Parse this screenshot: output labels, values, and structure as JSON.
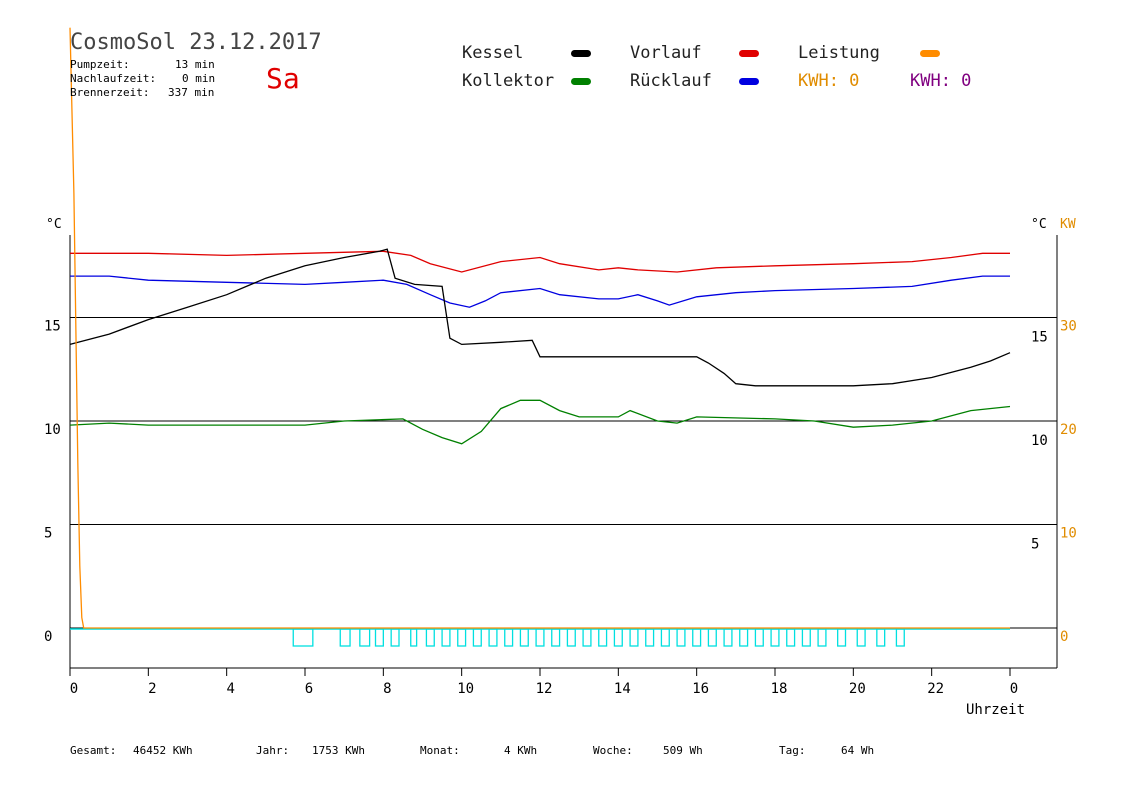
{
  "header": {
    "title": "CosmoSol 23.12.2017",
    "day": "Sa",
    "stats": [
      {
        "label": "Pumpzeit:",
        "value": "13 min"
      },
      {
        "label": "Nachlaufzeit:",
        "value": "0 min"
      },
      {
        "label": "Brennerzeit:",
        "value": "337 min"
      }
    ]
  },
  "legend": {
    "kessel": "Kessel",
    "kollektor": "Kollektor",
    "vorlauf": "Vorlauf",
    "ruecklauf": "Rücklauf",
    "leistung": "Leistung",
    "kwh_left": "KWH: 0",
    "kwh_right": "KWH: 0"
  },
  "colors": {
    "kessel": "#000000",
    "kollektor": "#008000",
    "vorlauf": "#e00000",
    "ruecklauf": "#0000e0",
    "leistung": "#ff8c00",
    "kwh_right": "#800080",
    "pump": "#00e0e0"
  },
  "footer": {
    "gesamt_label": "Gesamt:",
    "gesamt_value": "46452 KWh",
    "jahr_label": "Jahr:",
    "jahr_value": "1753 KWh",
    "monat_label": "Monat:",
    "monat_value": "4 KWh",
    "woche_label": "Woche:",
    "woche_value": "509 Wh",
    "tag_label": "Tag:",
    "tag_value": "64 Wh"
  },
  "chart_data": {
    "type": "line",
    "xlabel": "Uhrzeit",
    "ylabel_left": "°C",
    "ylabel_right_temp": "°C",
    "ylabel_right_power": "KW",
    "xlim": [
      0,
      24
    ],
    "ylim": [
      -3,
      22.5
    ],
    "x_tick_labels": [
      "0",
      "2",
      "4",
      "6",
      "8",
      "10",
      "12",
      "14",
      "16",
      "18",
      "20",
      "22",
      "0"
    ],
    "y_left_ticks": [
      0,
      5,
      10,
      15
    ],
    "y_right_temp_ticks": [
      5,
      10,
      15
    ],
    "y_right_power_ticks": [
      0,
      10,
      20,
      30
    ],
    "grid_y": [
      5,
      10,
      15
    ],
    "series": [
      {
        "name": "Vorlauf",
        "color_key": "vorlauf",
        "points": [
          [
            0,
            18.1
          ],
          [
            2,
            18.1
          ],
          [
            4,
            18.0
          ],
          [
            6,
            18.1
          ],
          [
            8,
            18.2
          ],
          [
            8.7,
            18.0
          ],
          [
            9.2,
            17.6
          ],
          [
            10,
            17.2
          ],
          [
            11,
            17.7
          ],
          [
            12,
            17.9
          ],
          [
            12.5,
            17.6
          ],
          [
            13.5,
            17.3
          ],
          [
            14,
            17.4
          ],
          [
            14.5,
            17.3
          ],
          [
            15.5,
            17.2
          ],
          [
            16.5,
            17.4
          ],
          [
            18,
            17.5
          ],
          [
            20,
            17.6
          ],
          [
            21.5,
            17.7
          ],
          [
            22.5,
            17.9
          ],
          [
            23.3,
            18.1
          ],
          [
            24,
            18.1
          ]
        ]
      },
      {
        "name": "Rücklauf",
        "color_key": "ruecklauf",
        "points": [
          [
            0,
            17.0
          ],
          [
            1,
            17.0
          ],
          [
            2,
            16.8
          ],
          [
            4,
            16.7
          ],
          [
            6,
            16.6
          ],
          [
            7,
            16.7
          ],
          [
            8,
            16.8
          ],
          [
            8.6,
            16.6
          ],
          [
            9.2,
            16.1
          ],
          [
            9.7,
            15.7
          ],
          [
            10.2,
            15.5
          ],
          [
            10.6,
            15.8
          ],
          [
            11,
            16.2
          ],
          [
            12,
            16.4
          ],
          [
            12.5,
            16.1
          ],
          [
            13.5,
            15.9
          ],
          [
            14,
            15.9
          ],
          [
            14.5,
            16.1
          ],
          [
            15,
            15.8
          ],
          [
            15.3,
            15.6
          ],
          [
            16,
            16.0
          ],
          [
            17,
            16.2
          ],
          [
            18,
            16.3
          ],
          [
            20,
            16.4
          ],
          [
            21.5,
            16.5
          ],
          [
            22.5,
            16.8
          ],
          [
            23.3,
            17.0
          ],
          [
            24,
            17.0
          ]
        ]
      },
      {
        "name": "Kessel",
        "color_key": "kessel",
        "points": [
          [
            0,
            13.7
          ],
          [
            1,
            14.2
          ],
          [
            2,
            14.9
          ],
          [
            3,
            15.5
          ],
          [
            4,
            16.1
          ],
          [
            5,
            16.9
          ],
          [
            6,
            17.5
          ],
          [
            7,
            17.9
          ],
          [
            7.9,
            18.2
          ],
          [
            8.1,
            18.3
          ],
          [
            8.3,
            16.9
          ],
          [
            8.8,
            16.6
          ],
          [
            9.5,
            16.5
          ],
          [
            9.7,
            14.0
          ],
          [
            10,
            13.7
          ],
          [
            11,
            13.8
          ],
          [
            11.8,
            13.9
          ],
          [
            12,
            13.1
          ],
          [
            14,
            13.1
          ],
          [
            15,
            13.1
          ],
          [
            16,
            13.1
          ],
          [
            16.3,
            12.8
          ],
          [
            16.7,
            12.3
          ],
          [
            17,
            11.8
          ],
          [
            17.5,
            11.7
          ],
          [
            18,
            11.7
          ],
          [
            19,
            11.7
          ],
          [
            20,
            11.7
          ],
          [
            21,
            11.8
          ],
          [
            22,
            12.1
          ],
          [
            23,
            12.6
          ],
          [
            23.5,
            12.9
          ],
          [
            24,
            13.3
          ]
        ]
      },
      {
        "name": "Kollektor",
        "color_key": "kollektor",
        "points": [
          [
            0,
            9.8
          ],
          [
            1,
            9.9
          ],
          [
            2,
            9.8
          ],
          [
            3,
            9.8
          ],
          [
            4,
            9.8
          ],
          [
            5,
            9.8
          ],
          [
            6,
            9.8
          ],
          [
            7,
            10.0
          ],
          [
            8.5,
            10.1
          ],
          [
            9,
            9.6
          ],
          [
            9.5,
            9.2
          ],
          [
            10,
            8.9
          ],
          [
            10.5,
            9.5
          ],
          [
            11,
            10.6
          ],
          [
            11.5,
            11.0
          ],
          [
            12,
            11.0
          ],
          [
            12.5,
            10.5
          ],
          [
            13,
            10.2
          ],
          [
            14,
            10.2
          ],
          [
            14.3,
            10.5
          ],
          [
            15,
            10.0
          ],
          [
            15.5,
            9.9
          ],
          [
            16,
            10.2
          ],
          [
            18,
            10.1
          ],
          [
            19,
            10.0
          ],
          [
            20,
            9.7
          ],
          [
            21,
            9.8
          ],
          [
            22,
            10.0
          ],
          [
            23,
            10.5
          ],
          [
            24,
            10.7
          ]
        ]
      },
      {
        "name": "Leistung",
        "color_key": "leistung",
        "axis": "power",
        "points": [
          [
            0,
            58
          ],
          [
            0.1,
            42
          ],
          [
            0.2,
            16
          ],
          [
            0.25,
            6
          ],
          [
            0.3,
            1
          ],
          [
            0.35,
            0
          ],
          [
            24,
            0
          ]
        ]
      }
    ],
    "pump_pulses": [
      [
        5.7,
        6.2
      ],
      [
        6.9,
        7.15
      ],
      [
        7.4,
        7.65
      ],
      [
        7.8,
        8.0
      ],
      [
        8.2,
        8.4
      ],
      [
        8.7,
        8.85
      ],
      [
        9.1,
        9.3
      ],
      [
        9.5,
        9.7
      ],
      [
        9.9,
        10.1
      ],
      [
        10.3,
        10.5
      ],
      [
        10.7,
        10.9
      ],
      [
        11.1,
        11.3
      ],
      [
        11.5,
        11.7
      ],
      [
        11.9,
        12.1
      ],
      [
        12.3,
        12.5
      ],
      [
        12.7,
        12.9
      ],
      [
        13.1,
        13.3
      ],
      [
        13.5,
        13.7
      ],
      [
        13.9,
        14.1
      ],
      [
        14.3,
        14.5
      ],
      [
        14.7,
        14.9
      ],
      [
        15.1,
        15.3
      ],
      [
        15.5,
        15.7
      ],
      [
        15.9,
        16.1
      ],
      [
        16.3,
        16.5
      ],
      [
        16.7,
        16.9
      ],
      [
        17.1,
        17.3
      ],
      [
        17.5,
        17.7
      ],
      [
        17.9,
        18.1
      ],
      [
        18.3,
        18.5
      ],
      [
        18.7,
        18.9
      ],
      [
        19.1,
        19.3
      ],
      [
        19.6,
        19.8
      ],
      [
        20.1,
        20.3
      ],
      [
        20.6,
        20.8
      ],
      [
        21.1,
        21.3
      ]
    ]
  }
}
